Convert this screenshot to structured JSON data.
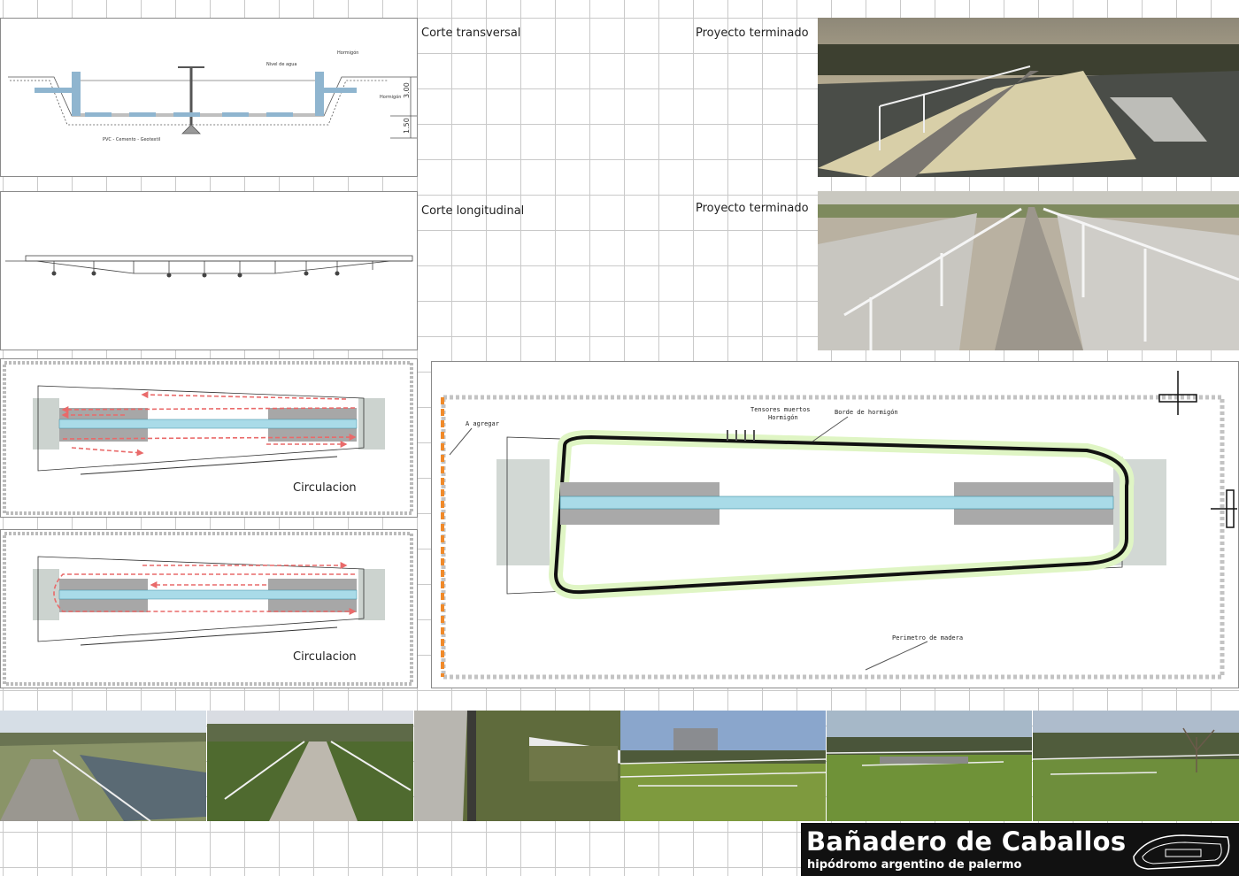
{
  "corte_transversal": {
    "title": "Corte transversal",
    "labels": [
      "Nivel de agua",
      "Hormigón",
      "Hormigón",
      "PVC - Cemento - Geotextil"
    ],
    "dims": [
      "3.00",
      "1.50"
    ]
  },
  "corte_longitudinal": {
    "title": "Corte longitudinal"
  },
  "photos_top": [
    {
      "caption": "Proyecto terminado"
    },
    {
      "caption": "Proyecto terminado"
    }
  ],
  "circulacion": [
    {
      "title": "Circulacion"
    },
    {
      "title": "Circulacion"
    }
  ],
  "plan": {
    "labels": [
      "A agregar",
      "Tensores muertos",
      "Hormigón",
      "Borde de hormigón",
      "Perimetro de madera"
    ]
  },
  "footer": {
    "title": "Bañadero de Caballos",
    "subtitle": "hipódromo argentino de palermo"
  }
}
